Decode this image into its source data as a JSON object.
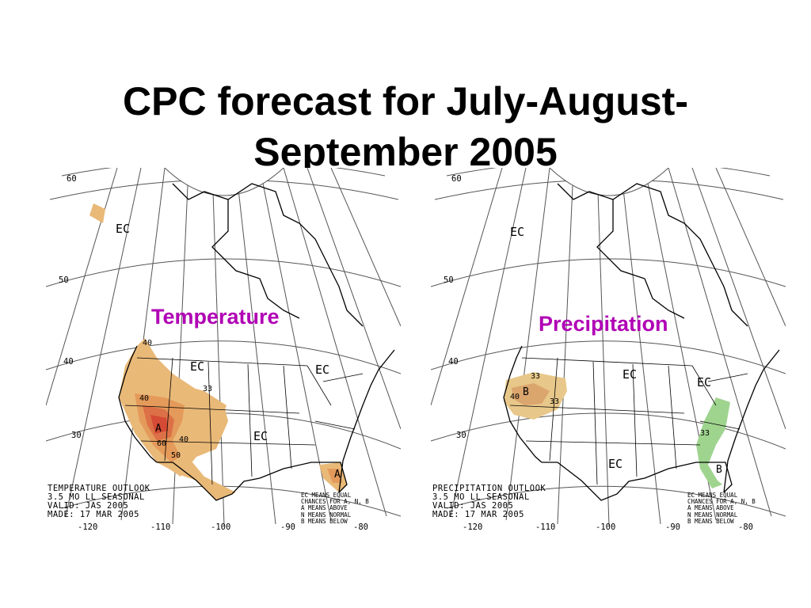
{
  "title": {
    "line1": "CPC forecast for July-August-",
    "line2": "September 2005"
  },
  "colors": {
    "above_33": "#e9b978",
    "above_40": "#e49a5a",
    "above_50": "#dc7046",
    "above_60": "#d44a35",
    "below_33": "#e8c88a",
    "below_40": "#dba56e",
    "precip_below_east": "#9fd48f",
    "label_purple": "#b000b5",
    "grid_line": "#444444"
  },
  "maps": [
    {
      "variable_label": "Temperature",
      "outlook": [
        "TEMPERATURE OUTLOOK",
        "3.5 MO LL SEASONAL",
        "VALID: JAS 2005",
        "MADE: 17 MAR 2005"
      ],
      "legend": [
        "EC MEANS EQUAL",
        "CHANCES FOR A, N, B",
        "A MEANS ABOVE",
        "N MEANS NORMAL",
        "B MEANS BELOW"
      ],
      "lat_labels": [
        "60",
        "50",
        "40",
        "30"
      ],
      "lon_labels": [
        "-120",
        "-110",
        "-100",
        "-90",
        "-80"
      ],
      "ec_labels": [
        "EC",
        "EC",
        "EC",
        "EC"
      ],
      "contour_labels": [
        "40",
        "33",
        "40",
        "40",
        "60",
        "50"
      ],
      "category_letters": [
        "A",
        "A"
      ]
    },
    {
      "variable_label": "Precipitation",
      "outlook": [
        "PRECIPITATION OUTLOOK",
        "3.5 MO LL SEASONAL",
        "VALID: JAS 2005",
        "MADE: 17 MAR 2005"
      ],
      "legend": [
        "EC MEANS EQUAL",
        "CHANCES FOR A, N, B",
        "A MEANS ABOVE",
        "N MEANS NORMAL",
        "B MEANS BELOW"
      ],
      "lat_labels": [
        "60",
        "50",
        "40",
        "30"
      ],
      "lon_labels": [
        "-120",
        "-110",
        "-100",
        "-90",
        "-80"
      ],
      "ec_labels": [
        "EC",
        "EC",
        "EC",
        "EC"
      ],
      "contour_labels": [
        "33",
        "40",
        "33",
        "33"
      ],
      "category_letters": [
        "B",
        "B"
      ]
    }
  ]
}
